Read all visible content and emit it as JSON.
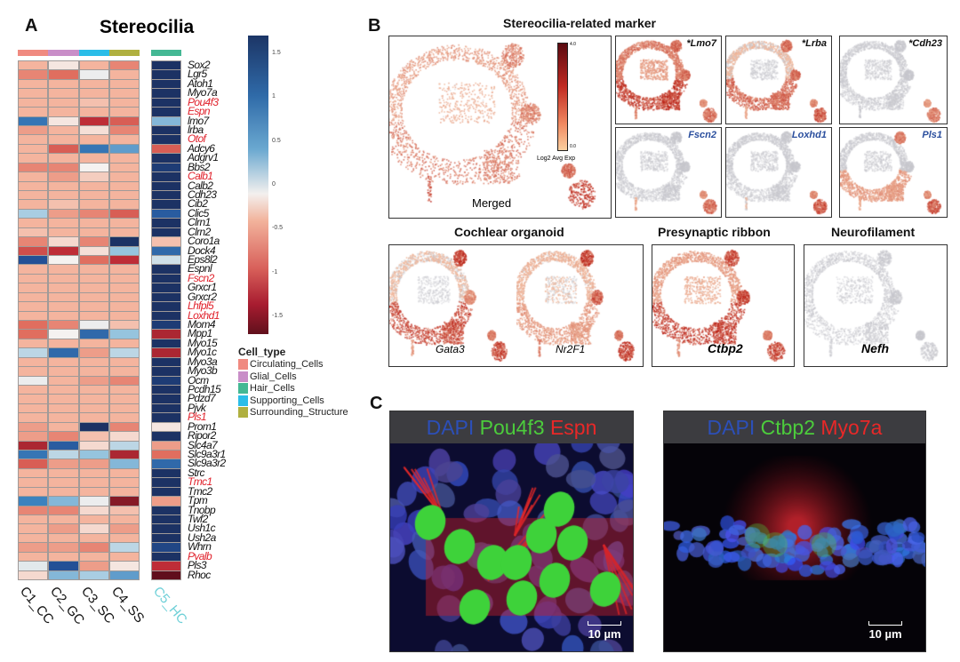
{
  "panel_a": {
    "label": "A",
    "title": "Stereocilia",
    "genes": [
      "Sox2",
      "Lgr5",
      "Atoh1",
      "Myo7a",
      "Pou4f3",
      "Espn",
      "lmo7",
      "lrba",
      "Otof",
      "Adcy6",
      "Adgrv1",
      "Bbs2",
      "Calb1",
      "Calb2",
      "Cdh23",
      "Cib2",
      "Clic5",
      "Clrn1",
      "Clrn2",
      "Coro1a",
      "Dock4",
      "Eps8l2",
      "Espnl",
      "Fscn2",
      "Grxcr1",
      "Grxcr2",
      "Lhfpl5",
      "Loxhd1",
      "Mom4",
      "Mpp1",
      "Myo15",
      "Myo1c",
      "Myo3a",
      "Myo3b",
      "Ocm",
      "Pcdh15",
      "Pdzd7",
      "Pjvk",
      "Pls1",
      "Prom1",
      "Ripor2",
      "Slc4a7",
      "Slc9a3r1",
      "Slc9a3r2",
      "Strc",
      "Tmc1",
      "Tmc2",
      "Tpm",
      "Tnobp",
      "Twf2",
      "Ush1c",
      "Ush2a",
      "Whrn",
      "Pvalb",
      "Pls3",
      "Rhoc"
    ],
    "highlighted_genes": [
      "Pou4f3",
      "Espn",
      "Otof",
      "Calb1",
      "Fscn2",
      "Lhfpl5",
      "Loxhd1",
      "Pls1",
      "Tmc1",
      "Pvalb"
    ],
    "highlight_color": "#e0202a",
    "columns": [
      "C1_CC",
      "C2_GC",
      "C3_SC",
      "C4_SS",
      "C5_HC"
    ],
    "column_cell_types": [
      "Circulating_Cells",
      "Glial_Cells",
      "Supporting_Cells",
      "Surrounding_Structure",
      "Hair_Cells"
    ],
    "highlight_column_color": "#6fd0d8",
    "values": [
      [
        -0.5,
        -0.1,
        -0.5,
        -0.7,
        1.7
      ],
      [
        -0.7,
        -0.8,
        0.05,
        -0.5,
        1.7
      ],
      [
        -0.5,
        -0.5,
        -0.5,
        -0.5,
        1.7
      ],
      [
        -0.5,
        -0.5,
        -0.5,
        -0.5,
        1.7
      ],
      [
        -0.5,
        -0.5,
        -0.4,
        -0.5,
        1.7
      ],
      [
        -0.5,
        -0.5,
        -0.5,
        -0.5,
        1.7
      ],
      [
        1.1,
        -0.1,
        -1.2,
        -0.9,
        0.6
      ],
      [
        -0.6,
        -0.5,
        -0.15,
        -0.7,
        1.7
      ],
      [
        -0.5,
        -0.5,
        -0.5,
        -0.5,
        1.7
      ],
      [
        -0.5,
        -0.9,
        1.1,
        0.8,
        -0.9
      ],
      [
        -0.5,
        -0.5,
        -0.5,
        -0.5,
        1.7
      ],
      [
        -0.7,
        -0.7,
        0.0,
        -0.5,
        1.6
      ],
      [
        -0.5,
        -0.6,
        -0.3,
        -0.5,
        1.7
      ],
      [
        -0.5,
        -0.5,
        -0.5,
        -0.5,
        1.7
      ],
      [
        -0.5,
        -0.5,
        -0.5,
        -0.5,
        1.7
      ],
      [
        -0.5,
        -0.4,
        -0.5,
        -0.5,
        1.7
      ],
      [
        0.4,
        -0.6,
        -0.7,
        -0.9,
        1.3
      ],
      [
        -0.5,
        -0.5,
        -0.5,
        -0.5,
        1.7
      ],
      [
        -0.4,
        -0.5,
        -0.5,
        -0.5,
        1.7
      ],
      [
        -0.7,
        -0.2,
        -0.7,
        1.7,
        -0.4
      ],
      [
        -1.0,
        -1.2,
        -0.15,
        0.5,
        1.2
      ],
      [
        1.4,
        0.0,
        -0.8,
        -1.2,
        0.2
      ],
      [
        -0.5,
        -0.5,
        -0.5,
        -0.5,
        1.7
      ],
      [
        -0.5,
        -0.5,
        -0.5,
        -0.5,
        1.7
      ],
      [
        -0.5,
        -0.5,
        -0.5,
        -0.5,
        1.7
      ],
      [
        -0.5,
        -0.5,
        -0.5,
        -0.5,
        1.7
      ],
      [
        -0.5,
        -0.5,
        -0.5,
        -0.5,
        1.7
      ],
      [
        -0.5,
        -0.5,
        -0.5,
        -0.5,
        1.7
      ],
      [
        -0.8,
        -0.7,
        0.05,
        -0.4,
        1.6
      ],
      [
        -0.8,
        0.0,
        1.2,
        0.5,
        -1.3
      ],
      [
        -0.5,
        -0.5,
        -0.5,
        -0.5,
        1.7
      ],
      [
        0.3,
        1.2,
        -0.6,
        0.3,
        -1.3
      ],
      [
        -0.5,
        -0.5,
        -0.5,
        -0.5,
        1.7
      ],
      [
        -0.5,
        -0.5,
        -0.5,
        -0.5,
        1.7
      ],
      [
        0.05,
        -0.5,
        -0.6,
        -0.7,
        1.6
      ],
      [
        -0.5,
        -0.5,
        -0.5,
        -0.5,
        1.7
      ],
      [
        -0.5,
        -0.5,
        -0.5,
        -0.5,
        1.7
      ],
      [
        -0.5,
        -0.5,
        -0.5,
        -0.5,
        1.7
      ],
      [
        -0.5,
        -0.5,
        -0.5,
        -0.5,
        1.7
      ],
      [
        -0.6,
        -0.5,
        1.7,
        -0.7,
        -0.1
      ],
      [
        -0.6,
        -0.7,
        -0.4,
        -0.2,
        1.7
      ],
      [
        -1.3,
        1.3,
        -0.2,
        0.3,
        -0.6
      ],
      [
        1.1,
        0.3,
        0.5,
        -1.3,
        -0.8
      ],
      [
        -0.9,
        -0.6,
        -0.6,
        0.6,
        1.2
      ],
      [
        -0.5,
        -0.5,
        -0.5,
        -0.5,
        1.7
      ],
      [
        -0.5,
        -0.5,
        -0.5,
        -0.5,
        1.7
      ],
      [
        -0.5,
        -0.5,
        -0.5,
        -0.5,
        1.7
      ],
      [
        1.0,
        0.6,
        0.05,
        -1.5,
        -0.6
      ],
      [
        -0.7,
        -0.7,
        -0.2,
        -0.4,
        1.7
      ],
      [
        -0.5,
        -0.5,
        -0.5,
        -0.5,
        1.7
      ],
      [
        -0.5,
        -0.6,
        -0.2,
        -0.6,
        1.7
      ],
      [
        -0.5,
        -0.5,
        -0.5,
        -0.5,
        1.7
      ],
      [
        -0.6,
        -0.6,
        -0.7,
        0.3,
        1.5
      ],
      [
        -0.5,
        -0.5,
        -0.5,
        -0.5,
        1.7
      ],
      [
        0.1,
        1.4,
        -0.6,
        -0.1,
        -1.2
      ],
      [
        -0.2,
        0.6,
        0.4,
        0.8,
        -1.7
      ]
    ],
    "colorbar": {
      "ticks": [
        "1.5",
        "1",
        "0.5",
        "0",
        "-0.5",
        "-1",
        "-1.5"
      ],
      "tick_values": [
        1.5,
        1,
        0.5,
        0,
        -0.5,
        -1,
        -1.5
      ],
      "range": [
        -1.7,
        1.7
      ]
    },
    "legend": {
      "title": "Cell_type",
      "items": [
        {
          "label": "Circulating_Cells",
          "color": "#f08a80"
        },
        {
          "label": "Glial_Cells",
          "color": "#c98ec8"
        },
        {
          "label": "Hair_Cells",
          "color": "#44b894"
        },
        {
          "label": "Supporting_Cells",
          "color": "#2bbde8"
        },
        {
          "label": "Surrounding_Structure",
          "color": "#b0b040"
        }
      ]
    }
  },
  "panel_b": {
    "label": "B",
    "title": "Stereocilia-related marker",
    "merged_label": "Merged",
    "colorbar_label": "Log2 Avg Exp",
    "colorbar_ticks": [
      "4.0",
      "0.0"
    ],
    "markers": [
      {
        "gene": "*Lmo7",
        "color": "#111111"
      },
      {
        "gene": "*Lrba",
        "color": "#111111"
      },
      {
        "gene": "*Cdh23",
        "color": "#111111"
      },
      {
        "gene": "Fscn2",
        "color": "#2b4f9e"
      },
      {
        "gene": "Loxhd1",
        "color": "#2b4f9e"
      },
      {
        "gene": "Pls1",
        "color": "#2b4f9e"
      }
    ],
    "groups": [
      {
        "title": "Cochlear organoid",
        "genes": [
          "Gata3",
          "Nr2F1"
        ]
      },
      {
        "title": "Presynaptic ribbon",
        "genes": [
          "Ctbp2"
        ]
      },
      {
        "title": "Neurofilament",
        "genes": [
          "Nefh"
        ]
      }
    ]
  },
  "panel_c": {
    "label": "C",
    "images": [
      {
        "stains": [
          {
            "text": "DAPI",
            "color": "#2c4fb8"
          },
          {
            "text": "Pou4f3",
            "color": "#4ccc3c"
          },
          {
            "text": "Espn",
            "color": "#e82828"
          }
        ],
        "scale": "10 µm"
      },
      {
        "stains": [
          {
            "text": "DAPI",
            "color": "#2c4fb8"
          },
          {
            "text": "Ctbp2",
            "color": "#4ccc3c"
          },
          {
            "text": "Myo7a",
            "color": "#e82828"
          }
        ],
        "scale": "10 µm"
      }
    ]
  }
}
